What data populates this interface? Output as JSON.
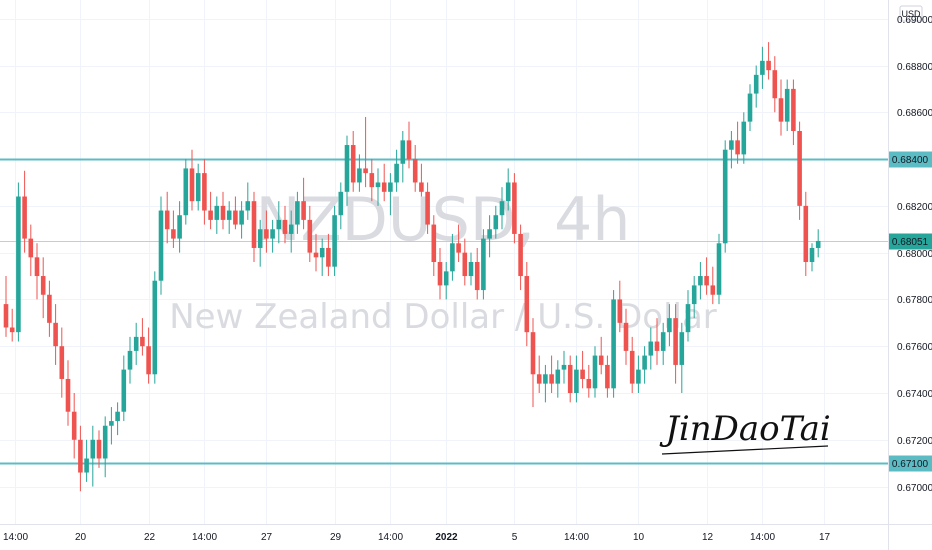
{
  "symbol_watermark": "NZDUSD, 4h",
  "description_watermark": "New Zealand Dollar / U.S. Dollar",
  "currency": "USD",
  "signature": "JinDaoTai",
  "colors": {
    "up": "#26a69a",
    "down": "#ef5350",
    "level_line": "#5cbcc4",
    "grid": "#f0f3fa",
    "axis_text": "#131722"
  },
  "chart_data": {
    "type": "candlestick",
    "ylim": [
      0.6684,
      0.6908
    ],
    "y_ticks": [
      "0.69000",
      "0.68800",
      "0.68600",
      "0.68400",
      "0.68200",
      "0.68000",
      "0.67800",
      "0.67600",
      "0.67400",
      "0.67200",
      "0.67000"
    ],
    "x_ticks": [
      {
        "label": "14:00",
        "bar": 1.5,
        "bold": false
      },
      {
        "label": "20",
        "bar": 12,
        "bold": false
      },
      {
        "label": "22",
        "bar": 23,
        "bold": false
      },
      {
        "label": "14:00",
        "bar": 32,
        "bold": false
      },
      {
        "label": "27",
        "bar": 42,
        "bold": false
      },
      {
        "label": "29",
        "bar": 53,
        "bold": false
      },
      {
        "label": "14:00",
        "bar": 62,
        "bold": false
      },
      {
        "label": "2022",
        "bar": 71,
        "bold": true
      },
      {
        "label": "5",
        "bar": 82,
        "bold": false
      },
      {
        "label": "14:00",
        "bar": 92,
        "bold": false
      },
      {
        "label": "10",
        "bar": 102,
        "bold": false
      },
      {
        "label": "12",
        "bar": 113,
        "bold": false
      },
      {
        "label": "14:00",
        "bar": 122,
        "bold": false
      },
      {
        "label": "17",
        "bar": 132,
        "bold": false
      }
    ],
    "levels": [
      0.684,
      0.671
    ],
    "level_labels": [
      "0.68400",
      "0.67100"
    ],
    "last_price": 0.68051,
    "last_price_label": "0.68051",
    "candles": [
      [
        0.6778,
        0.679,
        0.6764,
        0.6768
      ],
      [
        0.6768,
        0.6776,
        0.6762,
        0.6766
      ],
      [
        0.6766,
        0.683,
        0.6762,
        0.6824
      ],
      [
        0.6824,
        0.6835,
        0.68,
        0.6806
      ],
      [
        0.6806,
        0.6812,
        0.679,
        0.6798
      ],
      [
        0.6798,
        0.6804,
        0.678,
        0.679
      ],
      [
        0.679,
        0.6798,
        0.6772,
        0.6782
      ],
      [
        0.6782,
        0.6788,
        0.6764,
        0.677
      ],
      [
        0.677,
        0.6778,
        0.6752,
        0.676
      ],
      [
        0.676,
        0.6768,
        0.6738,
        0.6746
      ],
      [
        0.6746,
        0.6754,
        0.6726,
        0.6732
      ],
      [
        0.6732,
        0.674,
        0.6712,
        0.672
      ],
      [
        0.672,
        0.6726,
        0.6698,
        0.6706
      ],
      [
        0.6706,
        0.672,
        0.6702,
        0.6712
      ],
      [
        0.6712,
        0.6726,
        0.67,
        0.672
      ],
      [
        0.672,
        0.6724,
        0.6708,
        0.6712
      ],
      [
        0.6712,
        0.673,
        0.6704,
        0.6726
      ],
      [
        0.6726,
        0.6734,
        0.6718,
        0.6728
      ],
      [
        0.6728,
        0.6736,
        0.6722,
        0.6732
      ],
      [
        0.6732,
        0.6756,
        0.6728,
        0.675
      ],
      [
        0.675,
        0.6764,
        0.6744,
        0.6758
      ],
      [
        0.6758,
        0.677,
        0.6752,
        0.6764
      ],
      [
        0.6764,
        0.6772,
        0.6756,
        0.676
      ],
      [
        0.676,
        0.6768,
        0.6744,
        0.6748
      ],
      [
        0.6748,
        0.6792,
        0.6744,
        0.6788
      ],
      [
        0.6788,
        0.6824,
        0.6782,
        0.6818
      ],
      [
        0.6818,
        0.6826,
        0.6804,
        0.681
      ],
      [
        0.681,
        0.6818,
        0.6802,
        0.6806
      ],
      [
        0.6806,
        0.6822,
        0.68,
        0.6816
      ],
      [
        0.6816,
        0.684,
        0.6812,
        0.6836
      ],
      [
        0.6836,
        0.6844,
        0.6818,
        0.6822
      ],
      [
        0.6822,
        0.6838,
        0.6818,
        0.6834
      ],
      [
        0.6834,
        0.684,
        0.6812,
        0.6818
      ],
      [
        0.6818,
        0.6826,
        0.681,
        0.6814
      ],
      [
        0.6814,
        0.6824,
        0.6808,
        0.682
      ],
      [
        0.682,
        0.6826,
        0.681,
        0.6814
      ],
      [
        0.6814,
        0.6822,
        0.6808,
        0.6818
      ],
      [
        0.6818,
        0.6824,
        0.681,
        0.6812
      ],
      [
        0.6812,
        0.6822,
        0.6806,
        0.6818
      ],
      [
        0.6818,
        0.683,
        0.6814,
        0.6822
      ],
      [
        0.6822,
        0.6826,
        0.6796,
        0.6802
      ],
      [
        0.6802,
        0.6814,
        0.6794,
        0.681
      ],
      [
        0.681,
        0.6818,
        0.68,
        0.6806
      ],
      [
        0.6806,
        0.6814,
        0.68,
        0.681
      ],
      [
        0.681,
        0.6822,
        0.6804,
        0.6814
      ],
      [
        0.6814,
        0.682,
        0.6804,
        0.6808
      ],
      [
        0.6808,
        0.6818,
        0.68,
        0.6812
      ],
      [
        0.6812,
        0.6826,
        0.6808,
        0.6822
      ],
      [
        0.6822,
        0.6832,
        0.681,
        0.6814
      ],
      [
        0.6814,
        0.682,
        0.6796,
        0.68
      ],
      [
        0.68,
        0.6808,
        0.6792,
        0.6798
      ],
      [
        0.6798,
        0.6806,
        0.679,
        0.6802
      ],
      [
        0.6802,
        0.6808,
        0.679,
        0.6794
      ],
      [
        0.6794,
        0.682,
        0.679,
        0.6816
      ],
      [
        0.6816,
        0.683,
        0.681,
        0.6826
      ],
      [
        0.6826,
        0.685,
        0.682,
        0.6846
      ],
      [
        0.6846,
        0.6852,
        0.6826,
        0.683
      ],
      [
        0.683,
        0.6842,
        0.6826,
        0.6836
      ],
      [
        0.6836,
        0.6858,
        0.6828,
        0.6834
      ],
      [
        0.6834,
        0.684,
        0.6822,
        0.6828
      ],
      [
        0.6828,
        0.6836,
        0.682,
        0.683
      ],
      [
        0.683,
        0.6838,
        0.6822,
        0.6826
      ],
      [
        0.6826,
        0.6834,
        0.6816,
        0.683
      ],
      [
        0.683,
        0.6844,
        0.6826,
        0.6838
      ],
      [
        0.6838,
        0.6852,
        0.683,
        0.6848
      ],
      [
        0.6848,
        0.6856,
        0.6836,
        0.684
      ],
      [
        0.684,
        0.6846,
        0.6826,
        0.683
      ],
      [
        0.683,
        0.6838,
        0.6824,
        0.6826
      ],
      [
        0.6826,
        0.683,
        0.6808,
        0.6812
      ],
      [
        0.6812,
        0.6816,
        0.679,
        0.6796
      ],
      [
        0.6796,
        0.6802,
        0.678,
        0.6786
      ],
      [
        0.6786,
        0.6796,
        0.678,
        0.6792
      ],
      [
        0.6792,
        0.6808,
        0.6788,
        0.6804
      ],
      [
        0.6804,
        0.6812,
        0.6796,
        0.68
      ],
      [
        0.68,
        0.6806,
        0.6786,
        0.679
      ],
      [
        0.679,
        0.68,
        0.6786,
        0.6796
      ],
      [
        0.6796,
        0.6802,
        0.678,
        0.6784
      ],
      [
        0.6784,
        0.681,
        0.678,
        0.6806
      ],
      [
        0.6806,
        0.6816,
        0.6798,
        0.681
      ],
      [
        0.681,
        0.682,
        0.6806,
        0.6816
      ],
      [
        0.6816,
        0.6828,
        0.681,
        0.6822
      ],
      [
        0.6822,
        0.6836,
        0.6818,
        0.683
      ],
      [
        0.683,
        0.6834,
        0.6804,
        0.6808
      ],
      [
        0.6808,
        0.6812,
        0.6784,
        0.679
      ],
      [
        0.679,
        0.6796,
        0.676,
        0.6766
      ],
      [
        0.6766,
        0.6772,
        0.6734,
        0.6748
      ],
      [
        0.6748,
        0.6756,
        0.674,
        0.6744
      ],
      [
        0.6744,
        0.6752,
        0.6736,
        0.6748
      ],
      [
        0.6748,
        0.6756,
        0.674,
        0.6744
      ],
      [
        0.6744,
        0.6754,
        0.6738,
        0.675
      ],
      [
        0.675,
        0.6758,
        0.6744,
        0.6752
      ],
      [
        0.6752,
        0.6756,
        0.6736,
        0.674
      ],
      [
        0.674,
        0.6756,
        0.6736,
        0.675
      ],
      [
        0.675,
        0.6758,
        0.6742,
        0.6746
      ],
      [
        0.6746,
        0.6752,
        0.6738,
        0.6742
      ],
      [
        0.6742,
        0.676,
        0.6738,
        0.6756
      ],
      [
        0.6756,
        0.6764,
        0.6748,
        0.6752
      ],
      [
        0.6752,
        0.6756,
        0.6738,
        0.6742
      ],
      [
        0.6742,
        0.6784,
        0.6738,
        0.678
      ],
      [
        0.678,
        0.6788,
        0.6766,
        0.677
      ],
      [
        0.677,
        0.6776,
        0.6752,
        0.6758
      ],
      [
        0.6758,
        0.6764,
        0.674,
        0.6744
      ],
      [
        0.6744,
        0.6756,
        0.674,
        0.675
      ],
      [
        0.675,
        0.676,
        0.6744,
        0.6756
      ],
      [
        0.6756,
        0.6768,
        0.675,
        0.6762
      ],
      [
        0.6762,
        0.6772,
        0.6752,
        0.6758
      ],
      [
        0.6758,
        0.677,
        0.6752,
        0.6766
      ],
      [
        0.6766,
        0.6778,
        0.676,
        0.6772
      ],
      [
        0.6772,
        0.6778,
        0.6744,
        0.6752
      ],
      [
        0.6752,
        0.677,
        0.674,
        0.6766
      ],
      [
        0.6766,
        0.6784,
        0.6762,
        0.6778
      ],
      [
        0.6778,
        0.679,
        0.6772,
        0.6786
      ],
      [
        0.6786,
        0.6796,
        0.678,
        0.679
      ],
      [
        0.679,
        0.6798,
        0.6782,
        0.6786
      ],
      [
        0.6786,
        0.6794,
        0.6778,
        0.6782
      ],
      [
        0.6782,
        0.6808,
        0.6778,
        0.6804
      ],
      [
        0.6804,
        0.6848,
        0.68,
        0.6844
      ],
      [
        0.6844,
        0.6852,
        0.6836,
        0.6848
      ],
      [
        0.6848,
        0.6856,
        0.6838,
        0.6842
      ],
      [
        0.6842,
        0.686,
        0.6838,
        0.6856
      ],
      [
        0.6856,
        0.6872,
        0.6852,
        0.6868
      ],
      [
        0.6868,
        0.688,
        0.6862,
        0.6876
      ],
      [
        0.6876,
        0.6888,
        0.687,
        0.6882
      ],
      [
        0.6882,
        0.689,
        0.6874,
        0.6878
      ],
      [
        0.6878,
        0.6884,
        0.686,
        0.6866
      ],
      [
        0.6866,
        0.6874,
        0.685,
        0.6856
      ],
      [
        0.6856,
        0.6874,
        0.6852,
        0.687
      ],
      [
        0.687,
        0.6874,
        0.6846,
        0.6852
      ],
      [
        0.6852,
        0.6856,
        0.6814,
        0.682
      ],
      [
        0.682,
        0.6826,
        0.679,
        0.6796
      ],
      [
        0.6796,
        0.6804,
        0.6792,
        0.6802
      ],
      [
        0.6802,
        0.681,
        0.6798,
        0.6805
      ]
    ]
  }
}
